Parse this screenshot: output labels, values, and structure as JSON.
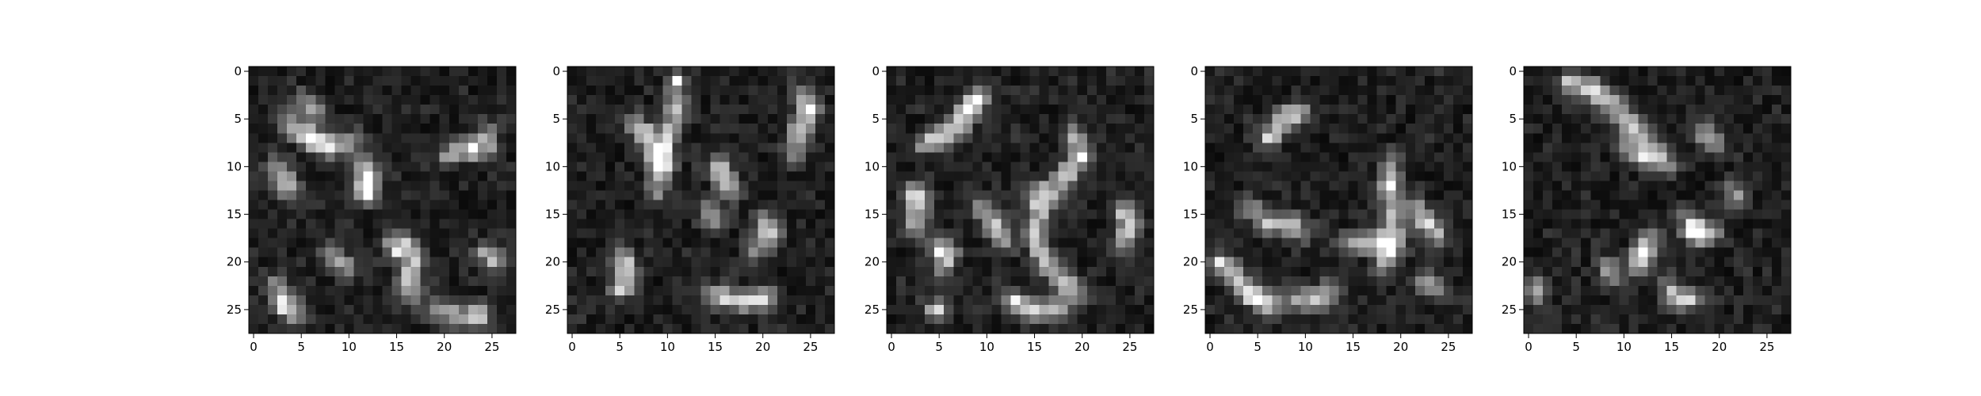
{
  "chart_data": [
    {
      "type": "heatmap",
      "colormap": "gray",
      "cmap_range": [
        0,
        1
      ],
      "x_range": [
        -0.5,
        27.5
      ],
      "y_range": [
        27.5,
        -0.5
      ],
      "xticks": [
        "0",
        "5",
        "10",
        "15",
        "20",
        "25"
      ],
      "yticks": [
        "0",
        "5",
        "10",
        "15",
        "20",
        "25"
      ],
      "seed": 11,
      "strokes": [
        [
          [
            3,
            5
          ],
          [
            6,
            7
          ],
          [
            8,
            8
          ],
          [
            11,
            7
          ]
        ],
        [
          [
            5,
            3
          ],
          [
            6,
            4
          ],
          [
            7,
            4
          ]
        ],
        [
          [
            11,
            9
          ],
          [
            12,
            11
          ],
          [
            12,
            13
          ],
          [
            11,
            12
          ]
        ],
        [
          [
            2,
            10
          ],
          [
            3,
            11
          ],
          [
            4,
            13
          ]
        ],
        [
          [
            20,
            9
          ],
          [
            23,
            8
          ],
          [
            25,
            8
          ]
        ],
        [
          [
            24,
            7
          ],
          [
            25,
            6
          ]
        ],
        [
          [
            14,
            18
          ],
          [
            16,
            18
          ],
          [
            17,
            20
          ],
          [
            16,
            22
          ],
          [
            17,
            24
          ]
        ],
        [
          [
            2,
            22
          ],
          [
            3,
            24
          ],
          [
            5,
            26
          ]
        ],
        [
          [
            19,
            25
          ],
          [
            22,
            26
          ],
          [
            24,
            25
          ]
        ],
        [
          [
            24,
            19
          ],
          [
            26,
            20
          ]
        ],
        [
          [
            8,
            19
          ],
          [
            10,
            21
          ]
        ]
      ],
      "bright": [
        [
          6,
          7,
          1.0
        ],
        [
          3,
          25,
          0.9
        ],
        [
          15,
          19,
          0.9
        ],
        [
          12,
          12,
          0.9
        ],
        [
          24,
          26,
          0.8
        ]
      ]
    },
    {
      "type": "heatmap",
      "colormap": "gray",
      "cmap_range": [
        0,
        1
      ],
      "x_range": [
        -0.5,
        27.5
      ],
      "y_range": [
        27.5,
        -0.5
      ],
      "xticks": [
        "0",
        "5",
        "10",
        "15",
        "20",
        "25"
      ],
      "yticks": [
        "0",
        "5",
        "10",
        "15",
        "20",
        "25"
      ],
      "seed": 23,
      "strokes": [
        [
          [
            11,
            1
          ],
          [
            11,
            4
          ],
          [
            10,
            7
          ],
          [
            9,
            10
          ],
          [
            9,
            13
          ]
        ],
        [
          [
            6,
            5
          ],
          [
            8,
            7
          ],
          [
            9,
            9
          ]
        ],
        [
          [
            24,
            2
          ],
          [
            25,
            4
          ],
          [
            24,
            6
          ],
          [
            23,
            9
          ]
        ],
        [
          [
            15,
            9
          ],
          [
            16,
            11
          ],
          [
            17,
            13
          ]
        ],
        [
          [
            5,
            19
          ],
          [
            6,
            21
          ],
          [
            5,
            23
          ]
        ],
        [
          [
            14,
            23
          ],
          [
            16,
            24
          ],
          [
            19,
            24
          ],
          [
            21,
            24
          ]
        ],
        [
          [
            20,
            15
          ],
          [
            21,
            17
          ],
          [
            19,
            19
          ]
        ],
        [
          [
            14,
            14
          ],
          [
            15,
            16
          ]
        ]
      ],
      "bright": [
        [
          11,
          1,
          1.0
        ],
        [
          10,
          10,
          0.8
        ],
        [
          5,
          23,
          0.9
        ],
        [
          20,
          24,
          0.7
        ]
      ]
    },
    {
      "type": "heatmap",
      "colormap": "gray",
      "cmap_range": [
        0,
        1
      ],
      "x_range": [
        -0.5,
        27.5
      ],
      "y_range": [
        27.5,
        -0.5
      ],
      "xticks": [
        "0",
        "5",
        "10",
        "15",
        "20",
        "25"
      ],
      "yticks": [
        "0",
        "5",
        "10",
        "15",
        "20",
        "25"
      ],
      "seed": 37,
      "strokes": [
        [
          [
            10,
            2
          ],
          [
            8,
            4
          ],
          [
            7,
            6
          ],
          [
            5,
            7
          ],
          [
            3,
            8
          ]
        ],
        [
          [
            2,
            12
          ],
          [
            3,
            14
          ],
          [
            2,
            17
          ]
        ],
        [
          [
            4,
            18
          ],
          [
            6,
            19
          ],
          [
            5,
            21
          ]
        ],
        [
          [
            19,
            6
          ],
          [
            20,
            9
          ],
          [
            18,
            11
          ],
          [
            17,
            13
          ]
        ],
        [
          [
            15,
            12
          ],
          [
            16,
            14
          ],
          [
            15,
            17
          ],
          [
            16,
            20
          ],
          [
            18,
            22
          ],
          [
            20,
            24
          ]
        ],
        [
          [
            12,
            24
          ],
          [
            15,
            25
          ],
          [
            18,
            25
          ]
        ],
        [
          [
            24,
            14
          ],
          [
            25,
            16
          ],
          [
            24,
            19
          ]
        ],
        [
          [
            9,
            14
          ],
          [
            11,
            16
          ],
          [
            12,
            18
          ]
        ],
        [
          [
            4,
            25
          ],
          [
            5,
            25
          ]
        ]
      ],
      "bright": [
        [
          9,
          3,
          1.0
        ],
        [
          8,
          4,
          0.95
        ],
        [
          3,
          13,
          0.9
        ],
        [
          5,
          25,
          0.9
        ],
        [
          13,
          24,
          0.8
        ]
      ]
    },
    {
      "type": "heatmap",
      "colormap": "gray",
      "cmap_range": [
        0,
        1
      ],
      "x_range": [
        -0.5,
        27.5
      ],
      "y_range": [
        27.5,
        -0.5
      ],
      "xticks": [
        "0",
        "5",
        "10",
        "15",
        "20",
        "25"
      ],
      "yticks": [
        "0",
        "5",
        "10",
        "15",
        "20",
        "25"
      ],
      "seed": 51,
      "strokes": [
        [
          [
            10,
            4
          ],
          [
            8,
            5
          ],
          [
            6,
            7
          ]
        ],
        [
          [
            19,
            9
          ],
          [
            19,
            12
          ],
          [
            19,
            15
          ],
          [
            19,
            18
          ],
          [
            18,
            21
          ]
        ],
        [
          [
            21,
            14
          ],
          [
            23,
            16
          ],
          [
            24,
            18
          ]
        ],
        [
          [
            14,
            18
          ],
          [
            17,
            18
          ],
          [
            20,
            18
          ]
        ],
        [
          [
            1,
            20
          ],
          [
            3,
            22
          ],
          [
            5,
            24
          ],
          [
            7,
            25
          ]
        ],
        [
          [
            8,
            24
          ],
          [
            11,
            24
          ],
          [
            13,
            23
          ]
        ],
        [
          [
            4,
            14
          ],
          [
            6,
            16
          ],
          [
            8,
            16
          ],
          [
            10,
            17
          ]
        ],
        [
          [
            22,
            22
          ],
          [
            24,
            23
          ]
        ]
      ],
      "bright": [
        [
          6,
          7,
          1.0
        ],
        [
          19,
          12,
          0.85
        ],
        [
          5,
          24,
          0.85
        ],
        [
          1,
          20,
          0.8
        ]
      ]
    },
    {
      "type": "heatmap",
      "colormap": "gray",
      "cmap_range": [
        0,
        1
      ],
      "x_range": [
        -0.5,
        27.5
      ],
      "y_range": [
        27.5,
        -0.5
      ],
      "xticks": [
        "0",
        "5",
        "10",
        "15",
        "20",
        "25"
      ],
      "yticks": [
        "0",
        "5",
        "10",
        "15",
        "20",
        "25"
      ],
      "seed": 67,
      "strokes": [
        [
          [
            4,
            1
          ],
          [
            7,
            2
          ],
          [
            9,
            4
          ],
          [
            11,
            6
          ],
          [
            13,
            8
          ]
        ],
        [
          [
            10,
            8
          ],
          [
            13,
            9
          ],
          [
            15,
            10
          ]
        ],
        [
          [
            16,
            15
          ],
          [
            18,
            17
          ],
          [
            20,
            17
          ]
        ],
        [
          [
            13,
            17
          ],
          [
            12,
            19
          ],
          [
            11,
            21
          ]
        ],
        [
          [
            14,
            22
          ],
          [
            16,
            24
          ],
          [
            18,
            24
          ]
        ],
        [
          [
            8,
            20
          ],
          [
            9,
            22
          ]
        ],
        [
          [
            1,
            22
          ],
          [
            1,
            24
          ]
        ],
        [
          [
            21,
            12
          ],
          [
            22,
            14
          ]
        ],
        [
          [
            18,
            6
          ],
          [
            20,
            8
          ]
        ]
      ],
      "bright": [
        [
          18,
          17,
          1.0
        ],
        [
          17,
          17,
          0.9
        ],
        [
          12,
          19,
          0.7
        ],
        [
          4,
          1,
          0.8
        ]
      ]
    }
  ]
}
